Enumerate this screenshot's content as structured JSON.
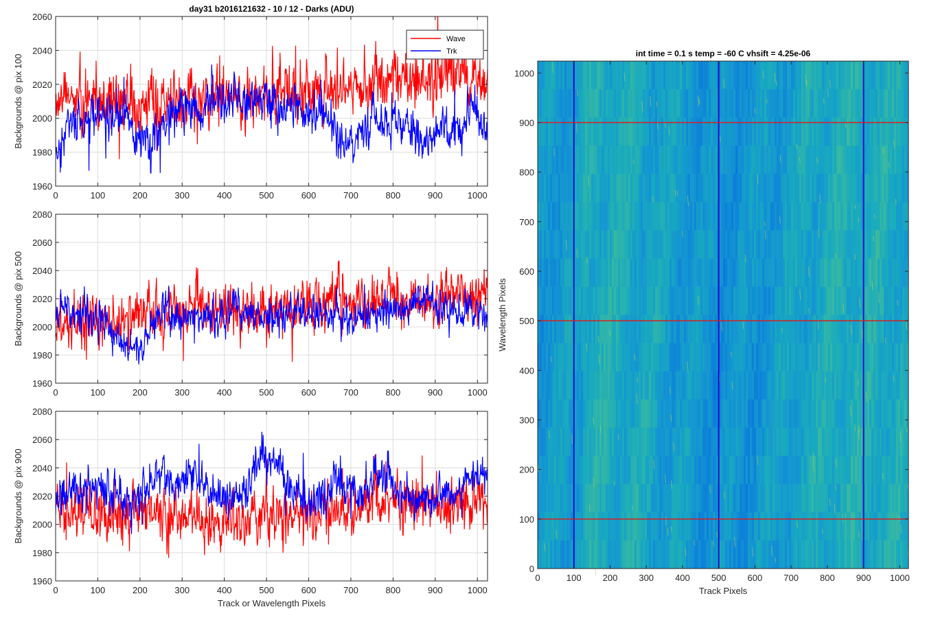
{
  "figure_title": "day31 b2016121632 - 10 / 12 - Darks (ADU)",
  "colors": {
    "wave": "#ff0000",
    "trk": "#0000ff",
    "grid": "#dcdcdc",
    "axis": "#262626",
    "hline": "#d62020",
    "vline": "#1010d0"
  },
  "chart_data": [
    {
      "type": "line",
      "title": "day31 b2016121632 - 10 / 12 - Darks (ADU)",
      "xlabel": "",
      "ylabel": "Backgrounds @ pix 100",
      "xlim": [
        0,
        1024
      ],
      "ylim": [
        1960,
        2060
      ],
      "xticks": [
        0,
        100,
        200,
        300,
        400,
        500,
        600,
        700,
        800,
        900,
        1000
      ],
      "yticks": [
        1960,
        1980,
        2000,
        2020,
        2040,
        2060
      ],
      "grid": true,
      "legend": "top-right",
      "series": [
        {
          "name": "Wave",
          "color": "#ff0000",
          "base": [
            [
              0,
              2012
            ],
            [
              100,
              2008
            ],
            [
              200,
              2009
            ],
            [
              300,
              2011
            ],
            [
              400,
              2012
            ],
            [
              500,
              2014
            ],
            [
              600,
              2016
            ],
            [
              700,
              2019
            ],
            [
              800,
              2022
            ],
            [
              900,
              2023
            ],
            [
              1024,
              2024
            ]
          ],
          "noise": 8
        },
        {
          "name": "Trk",
          "color": "#0000ff",
          "base": [
            [
              0,
              1975
            ],
            [
              30,
              1998
            ],
            [
              100,
              2002
            ],
            [
              160,
              2000
            ],
            [
              220,
              1985
            ],
            [
              280,
              2004
            ],
            [
              350,
              2008
            ],
            [
              420,
              2010
            ],
            [
              470,
              2012
            ],
            [
              560,
              2006
            ],
            [
              640,
              2002
            ],
            [
              680,
              1982
            ],
            [
              700,
              1985
            ],
            [
              760,
              2000
            ],
            [
              800,
              1998
            ],
            [
              860,
              1986
            ],
            [
              900,
              1993
            ],
            [
              960,
              1996
            ],
            [
              990,
              2008
            ],
            [
              1024,
              1990
            ]
          ],
          "noise": 6
        }
      ]
    },
    {
      "type": "line",
      "title": "",
      "xlabel": "",
      "ylabel": "Backgrounds @ pix 500",
      "xlim": [
        0,
        1024
      ],
      "ylim": [
        1960,
        2080
      ],
      "xticks": [
        0,
        100,
        200,
        300,
        400,
        500,
        600,
        700,
        800,
        900,
        1000
      ],
      "yticks": [
        1960,
        1980,
        2000,
        2020,
        2040,
        2060,
        2080
      ],
      "grid": true,
      "series": [
        {
          "name": "Wave",
          "color": "#ff0000",
          "base": [
            [
              0,
              2002
            ],
            [
              100,
              2006
            ],
            [
              200,
              2009
            ],
            [
              300,
              2012
            ],
            [
              400,
              2010
            ],
            [
              500,
              2012
            ],
            [
              600,
              2016
            ],
            [
              700,
              2018
            ],
            [
              800,
              2020
            ],
            [
              900,
              2020
            ],
            [
              1024,
              2024
            ]
          ],
          "noise": 9
        },
        {
          "name": "Trk",
          "color": "#0000ff",
          "base": [
            [
              0,
              2008
            ],
            [
              60,
              2010
            ],
            [
              120,
              2006
            ],
            [
              170,
              1982
            ],
            [
              200,
              1985
            ],
            [
              250,
              2010
            ],
            [
              300,
              2006
            ],
            [
              360,
              2006
            ],
            [
              420,
              2012
            ],
            [
              500,
              2006
            ],
            [
              600,
              2010
            ],
            [
              700,
              2006
            ],
            [
              800,
              2010
            ],
            [
              880,
              2022
            ],
            [
              930,
              2012
            ],
            [
              1024,
              2006
            ]
          ],
          "noise": 6
        }
      ]
    },
    {
      "type": "line",
      "title": "",
      "xlabel": "Track or Wavelength Pixels",
      "ylabel": "Backgrounds @ pix 900",
      "xlim": [
        0,
        1024
      ],
      "ylim": [
        1960,
        2080
      ],
      "xticks": [
        0,
        100,
        200,
        300,
        400,
        500,
        600,
        700,
        800,
        900,
        1000
      ],
      "yticks": [
        1960,
        1980,
        2000,
        2020,
        2040,
        2060,
        2080
      ],
      "grid": true,
      "series": [
        {
          "name": "Wave",
          "color": "#ff0000",
          "base": [
            [
              0,
              2008
            ],
            [
              100,
              2004
            ],
            [
              200,
              2010
            ],
            [
              300,
              2004
            ],
            [
              400,
              2004
            ],
            [
              500,
              2003
            ],
            [
              600,
              2006
            ],
            [
              700,
              2012
            ],
            [
              800,
              2016
            ],
            [
              900,
              2014
            ],
            [
              1024,
              2016
            ]
          ],
          "noise": 9
        },
        {
          "name": "Trk",
          "color": "#0000ff",
          "base": [
            [
              0,
              2016
            ],
            [
              60,
              2028
            ],
            [
              100,
              2030
            ],
            [
              150,
              2018
            ],
            [
              200,
              2016
            ],
            [
              240,
              2036
            ],
            [
              280,
              2028
            ],
            [
              330,
              2034
            ],
            [
              360,
              2022
            ],
            [
              400,
              2018
            ],
            [
              450,
              2022
            ],
            [
              490,
              2050
            ],
            [
              530,
              2044
            ],
            [
              560,
              2024
            ],
            [
              600,
              2016
            ],
            [
              640,
              2018
            ],
            [
              660,
              2032
            ],
            [
              720,
              2020
            ],
            [
              770,
              2036
            ],
            [
              800,
              2028
            ],
            [
              820,
              2020
            ],
            [
              880,
              2020
            ],
            [
              940,
              2024
            ],
            [
              1000,
              2032
            ],
            [
              1024,
              2040
            ]
          ],
          "noise": 7
        }
      ]
    },
    {
      "type": "heatmap",
      "title": "int time = 0.1 s   temp = -60 C   vhsift = 4.25e-06",
      "xlabel": "Track Pixels",
      "ylabel": "Wavelength Pixels",
      "xlim": [
        0,
        1024
      ],
      "ylim": [
        0,
        1024
      ],
      "xticks": [
        0,
        100,
        200,
        300,
        400,
        500,
        600,
        700,
        800,
        900,
        1000
      ],
      "yticks": [
        0,
        100,
        200,
        300,
        400,
        500,
        600,
        700,
        800,
        900,
        1000
      ],
      "grid": false,
      "colormap": "parula",
      "markers": {
        "horizontal": [
          100,
          500,
          900
        ],
        "vertical": [
          100,
          500,
          900
        ]
      }
    }
  ]
}
